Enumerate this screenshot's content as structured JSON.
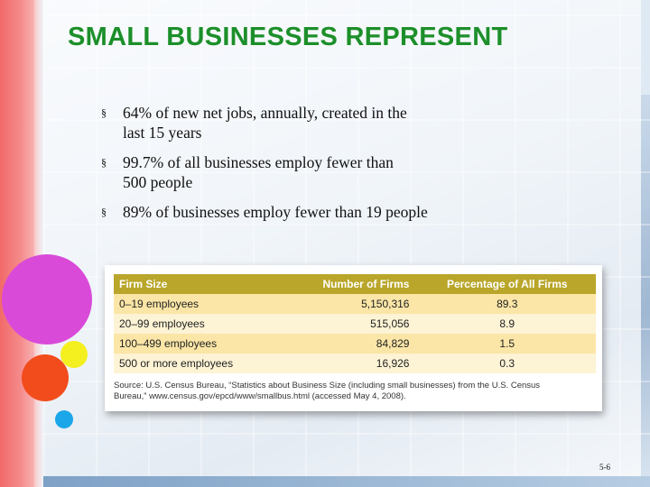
{
  "slide": {
    "title": "SMALL BUSINESSES REPRESENT",
    "bullet_marker": "§",
    "bullets": [
      {
        "line1": "64% of new net jobs, annually, created in the",
        "line2": "last 15 years"
      },
      {
        "line1": "99.7% of all businesses employ fewer than",
        "line2": "500 people"
      },
      {
        "line1": "89% of businesses employ fewer than 19 people",
        "line2": ""
      }
    ],
    "page_number": "5-6"
  },
  "table": {
    "headers": [
      "Firm Size",
      "Number of Firms",
      "Percentage of All Firms"
    ],
    "rows": [
      {
        "size": "0–19 employees",
        "firms": "5,150,316",
        "percent": "89.3"
      },
      {
        "size": "20–99 employees",
        "firms": "515,056",
        "percent": "8.9"
      },
      {
        "size": "100–499 employees",
        "firms": "84,829",
        "percent": "1.5"
      },
      {
        "size": "500 or more employees",
        "firms": "16,926",
        "percent": "0.3"
      }
    ],
    "source_line1": "Source: U.S. Census Bureau, “Statistics about Business Size (including small businesses) from the U.S. Census",
    "source_line2": "Bureau,” www.census.gov/epcd/www/smallbus.html (accessed May 4, 2008)."
  },
  "colors": {
    "title_green": "#1c8f2a",
    "table_header": "#b9a62a",
    "row_dark": "#fbe6a7",
    "row_light": "#fdf3d5",
    "circle_magenta": "#d94ad9",
    "circle_yellow": "#f4ef1f",
    "circle_orange": "#f24b1c",
    "circle_blue": "#1aa6e8"
  }
}
